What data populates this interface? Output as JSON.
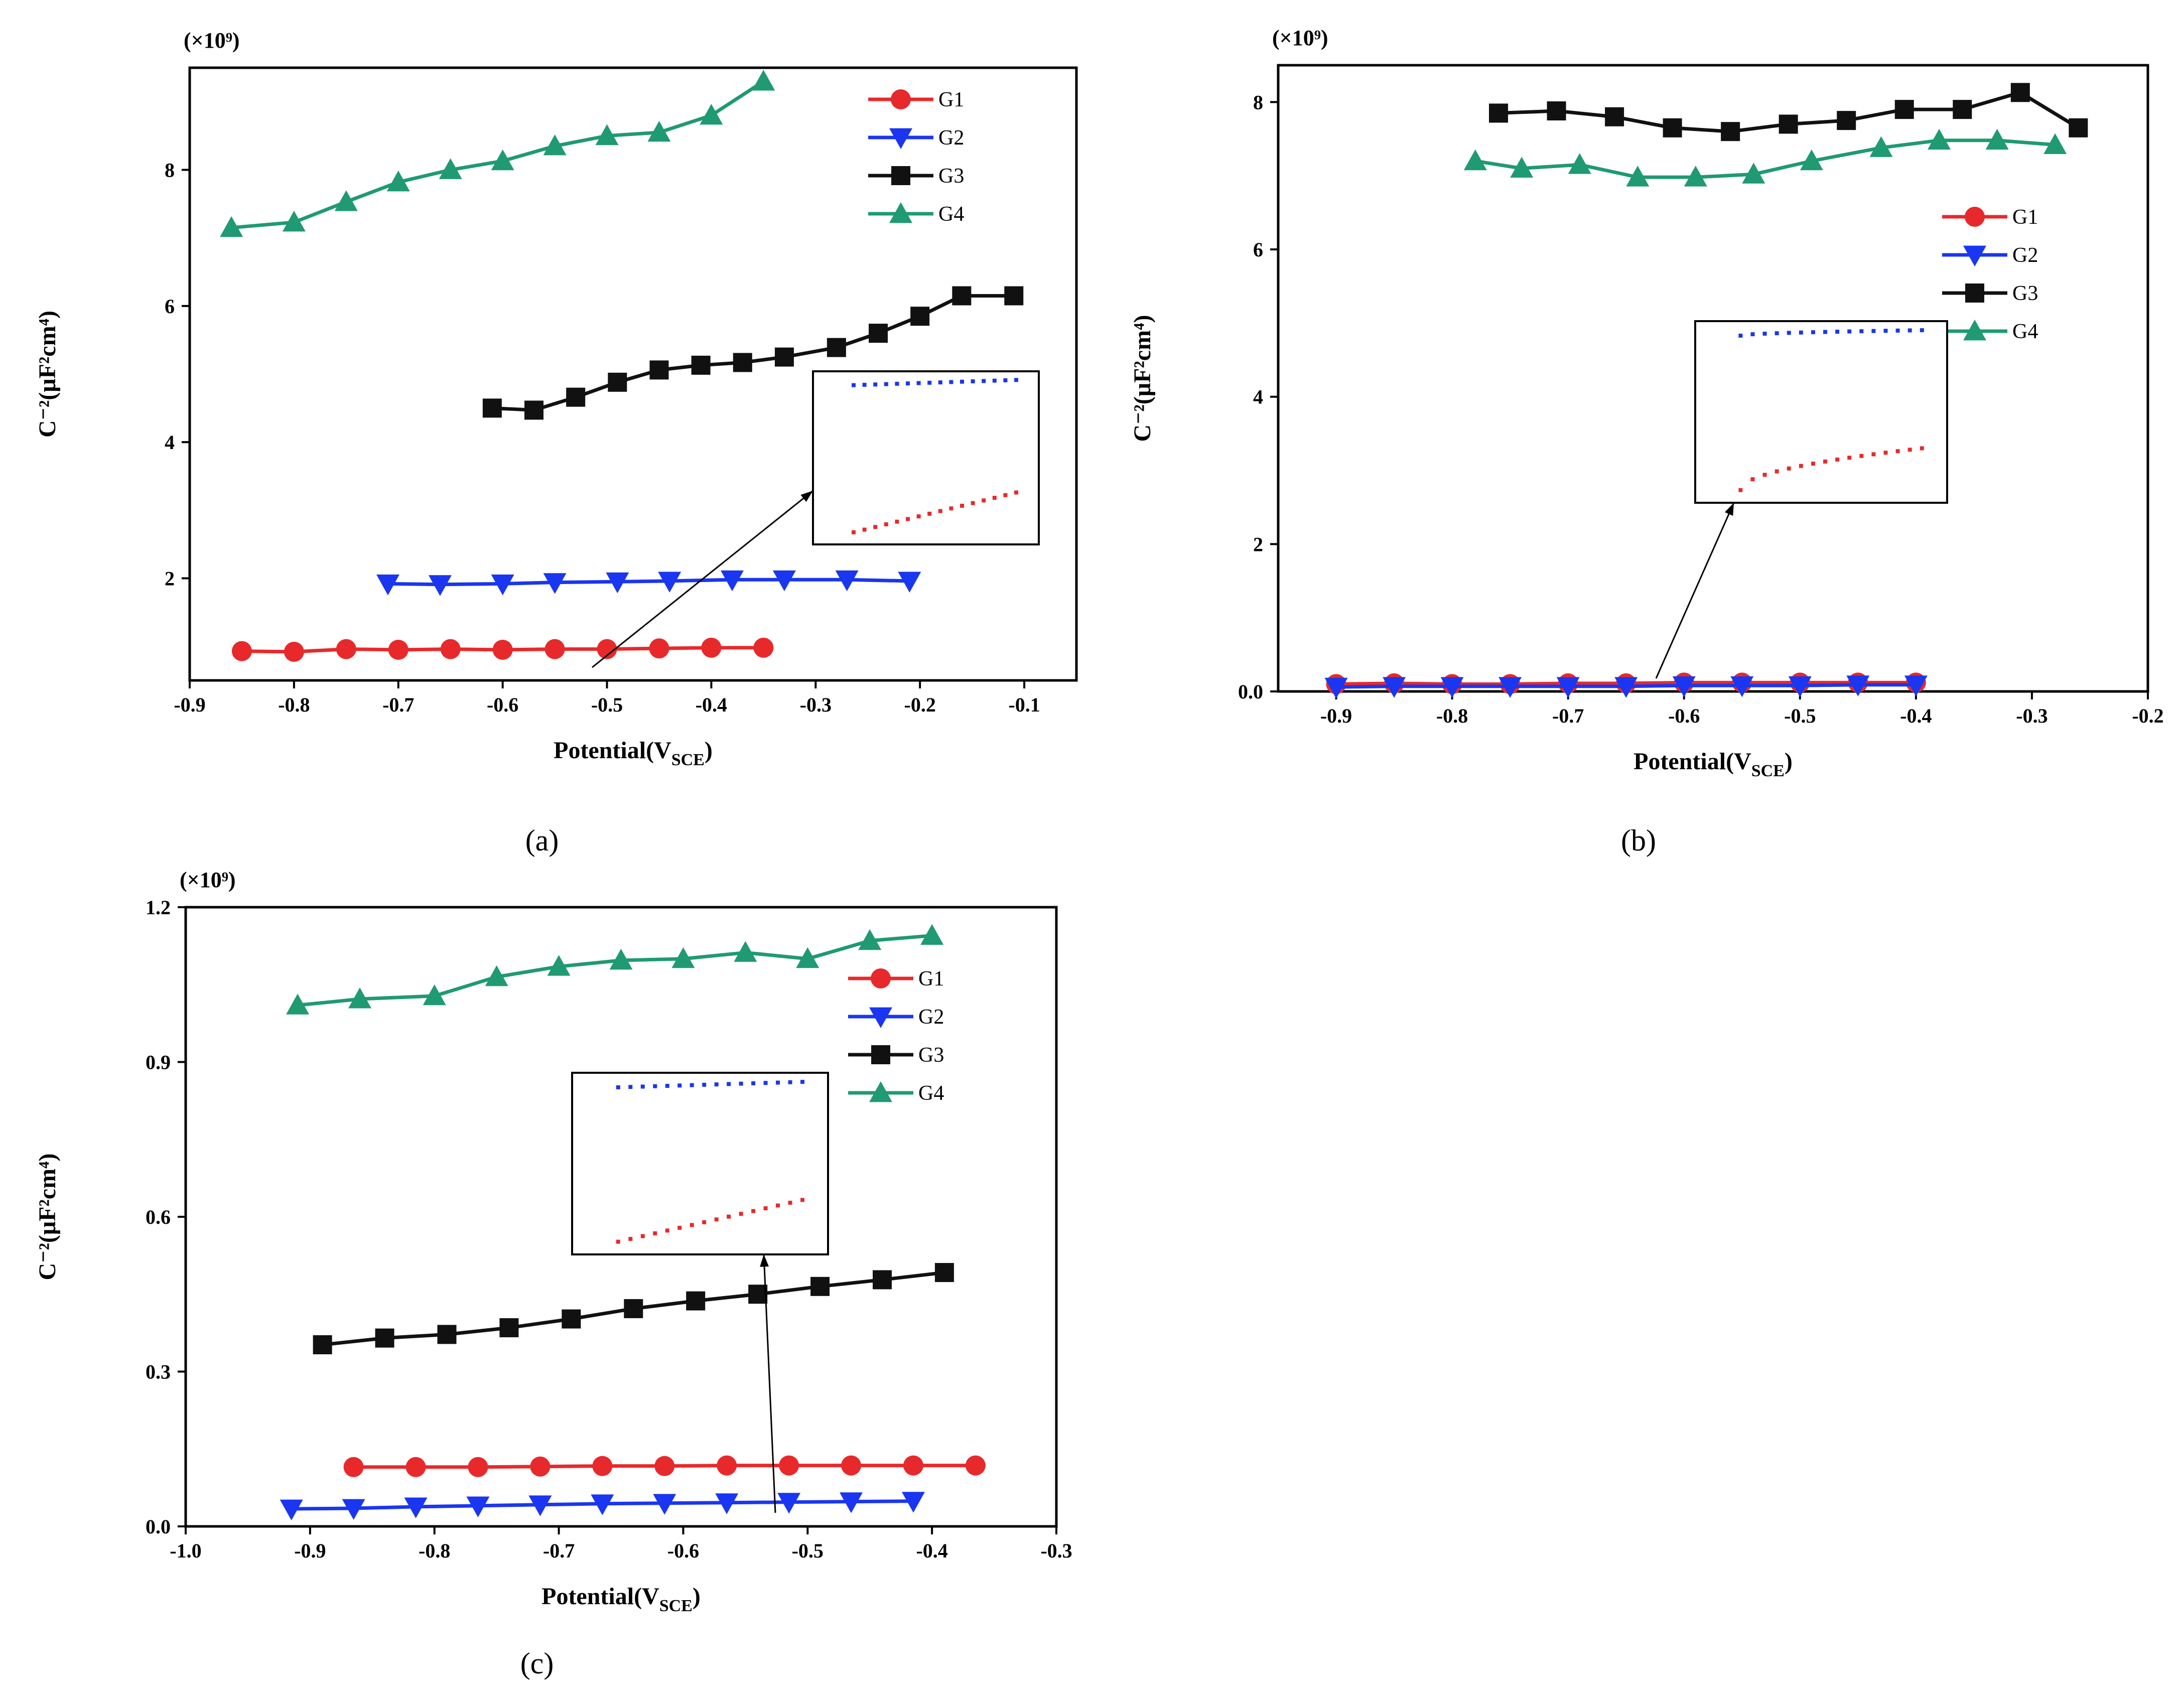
{
  "chart_data": [
    {
      "type": "line",
      "panel_label": "(a)",
      "multiplier": "(×10⁹)",
      "xlabel": "Potential(V",
      "xlabel_sub": "SCE",
      "ylabel": "C⁻²(μF²cm⁴)",
      "xlim": [
        -0.9,
        -0.05
      ],
      "ylim": [
        0.5,
        9.5
      ],
      "xticks": [
        -0.9,
        -0.8,
        -0.7,
        -0.6,
        -0.5,
        -0.4,
        -0.3,
        -0.2,
        -0.1
      ],
      "xtick_labels": [
        "-0.9",
        "-0.8",
        "-0.7",
        "-0.6",
        "-0.5",
        "-0.4",
        "-0.3",
        "-0.2",
        "-0.1"
      ],
      "yticks": [
        2,
        4,
        6,
        8
      ],
      "ytick_labels": [
        "2",
        "4",
        "6",
        "8"
      ],
      "legend_position": "top-right",
      "series": [
        {
          "name": "G1",
          "color": "#e8292b",
          "marker": "circle",
          "x": [
            -0.85,
            -0.8,
            -0.75,
            -0.7,
            -0.65,
            -0.6,
            -0.55,
            -0.5,
            -0.45,
            -0.4,
            -0.35
          ],
          "y": [
            0.93,
            0.92,
            0.96,
            0.95,
            0.96,
            0.95,
            0.96,
            0.96,
            0.97,
            0.98,
            0.98
          ]
        },
        {
          "name": "G2",
          "color": "#1a36f0",
          "marker": "triangle-down",
          "x": [
            -0.71,
            -0.66,
            -0.6,
            -0.55,
            -0.49,
            -0.44,
            -0.38,
            -0.33,
            -0.27,
            -0.21
          ],
          "y": [
            1.92,
            1.91,
            1.92,
            1.94,
            1.95,
            1.96,
            1.98,
            1.98,
            1.98,
            1.96
          ]
        },
        {
          "name": "G3",
          "color": "#111111",
          "marker": "square",
          "x": [
            -0.61,
            -0.57,
            -0.53,
            -0.49,
            -0.45,
            -0.41,
            -0.37,
            -0.33,
            -0.28,
            -0.24,
            -0.2,
            -0.16,
            -0.11
          ],
          "y": [
            4.5,
            4.47,
            4.66,
            4.88,
            5.06,
            5.13,
            5.17,
            5.25,
            5.39,
            5.6,
            5.85,
            6.15,
            6.15
          ]
        },
        {
          "name": "G4",
          "color": "#1f9a72",
          "marker": "triangle-up",
          "x": [
            -0.86,
            -0.8,
            -0.75,
            -0.7,
            -0.65,
            -0.6,
            -0.55,
            -0.5,
            -0.45,
            -0.4,
            -0.35
          ],
          "y": [
            7.15,
            7.23,
            7.53,
            7.82,
            8.0,
            8.13,
            8.35,
            8.5,
            8.55,
            8.8,
            9.3
          ]
        }
      ]
    },
    {
      "type": "line",
      "panel_label": "(b)",
      "multiplier": "(×10⁹)",
      "xlabel": "Potential(V",
      "xlabel_sub": "SCE",
      "ylabel": "C⁻²(μF²cm⁴)",
      "xlim": [
        -0.95,
        -0.2
      ],
      "ylim": [
        0,
        8.5
      ],
      "xticks": [
        -0.9,
        -0.8,
        -0.7,
        -0.6,
        -0.5,
        -0.4,
        -0.3,
        -0.2
      ],
      "xtick_labels": [
        "-0.9",
        "-0.8",
        "-0.7",
        "-0.6",
        "-0.5",
        "-0.4",
        "-0.3",
        "-0.2"
      ],
      "yticks": [
        0,
        2,
        4,
        6,
        8
      ],
      "ytick_labels": [
        "0.0",
        "2",
        "4",
        "6",
        "8"
      ],
      "legend_position": "right",
      "series": [
        {
          "name": "G1",
          "color": "#e8292b",
          "marker": "circle",
          "x": [
            -0.9,
            -0.85,
            -0.8,
            -0.75,
            -0.7,
            -0.65,
            -0.6,
            -0.55,
            -0.5,
            -0.45,
            -0.4
          ],
          "y": [
            0.1,
            0.11,
            0.1,
            0.1,
            0.11,
            0.11,
            0.12,
            0.12,
            0.12,
            0.12,
            0.12
          ]
        },
        {
          "name": "G2",
          "color": "#1a36f0",
          "marker": "triangle-down",
          "x": [
            -0.9,
            -0.85,
            -0.8,
            -0.75,
            -0.7,
            -0.65,
            -0.6,
            -0.55,
            -0.5,
            -0.45,
            -0.4
          ],
          "y": [
            0.06,
            0.07,
            0.07,
            0.07,
            0.07,
            0.07,
            0.08,
            0.08,
            0.08,
            0.09,
            0.09
          ]
        },
        {
          "name": "G3",
          "color": "#111111",
          "marker": "square",
          "x": [
            -0.76,
            -0.71,
            -0.66,
            -0.61,
            -0.56,
            -0.51,
            -0.46,
            -0.41,
            -0.36,
            -0.31,
            -0.26
          ],
          "y": [
            7.85,
            7.88,
            7.8,
            7.65,
            7.6,
            7.7,
            7.75,
            7.9,
            7.9,
            8.13,
            7.65
          ]
        },
        {
          "name": "G4",
          "color": "#1f9a72",
          "marker": "triangle-up",
          "x": [
            -0.78,
            -0.74,
            -0.69,
            -0.64,
            -0.59,
            -0.54,
            -0.49,
            -0.43,
            -0.38,
            -0.33,
            -0.28
          ],
          "y": [
            7.2,
            7.1,
            7.15,
            6.98,
            6.98,
            7.02,
            7.2,
            7.38,
            7.48,
            7.48,
            7.42
          ]
        }
      ]
    },
    {
      "type": "line",
      "panel_label": "(c)",
      "multiplier": "(×10⁹)",
      "xlabel": "Potential(V",
      "xlabel_sub": "SCE",
      "ylabel": "C⁻²(μF²cm⁴)",
      "xlim": [
        -1.0,
        -0.3
      ],
      "ylim": [
        0,
        1.2
      ],
      "xticks": [
        -1.0,
        -0.9,
        -0.8,
        -0.7,
        -0.6,
        -0.5,
        -0.4,
        -0.3
      ],
      "xtick_labels": [
        "-1.0",
        "-0.9",
        "-0.8",
        "-0.7",
        "-0.6",
        "-0.5",
        "-0.4",
        "-0.3"
      ],
      "yticks": [
        0,
        0.3,
        0.6,
        0.9,
        1.2
      ],
      "ytick_labels": [
        "0.0",
        "0.3",
        "0.6",
        "0.9",
        "1.2"
      ],
      "legend_position": "top-right",
      "series": [
        {
          "name": "G1",
          "color": "#e8292b",
          "marker": "circle",
          "x": [
            -0.865,
            -0.815,
            -0.765,
            -0.715,
            -0.665,
            -0.615,
            -0.565,
            -0.515,
            -0.465,
            -0.415,
            -0.365
          ],
          "y": [
            0.115,
            0.115,
            0.115,
            0.116,
            0.117,
            0.117,
            0.118,
            0.118,
            0.118,
            0.118,
            0.118
          ]
        },
        {
          "name": "G2",
          "color": "#1a36f0",
          "marker": "triangle-down",
          "x": [
            -0.915,
            -0.865,
            -0.815,
            -0.765,
            -0.715,
            -0.665,
            -0.615,
            -0.565,
            -0.515,
            -0.465,
            -0.415
          ],
          "y": [
            0.034,
            0.035,
            0.038,
            0.04,
            0.042,
            0.044,
            0.045,
            0.046,
            0.047,
            0.048,
            0.049
          ]
        },
        {
          "name": "G3",
          "color": "#111111",
          "marker": "square",
          "x": [
            -0.89,
            -0.84,
            -0.79,
            -0.74,
            -0.69,
            -0.64,
            -0.59,
            -0.54,
            -0.49,
            -0.44,
            -0.39
          ],
          "y": [
            0.352,
            0.365,
            0.372,
            0.385,
            0.402,
            0.422,
            0.437,
            0.45,
            0.465,
            0.478,
            0.492
          ]
        },
        {
          "name": "G4",
          "color": "#1f9a72",
          "marker": "triangle-up",
          "x": [
            -0.91,
            -0.86,
            -0.8,
            -0.75,
            -0.7,
            -0.65,
            -0.6,
            -0.55,
            -0.5,
            -0.45,
            -0.4
          ],
          "y": [
            1.01,
            1.022,
            1.028,
            1.065,
            1.085,
            1.097,
            1.1,
            1.112,
            1.1,
            1.135,
            1.145
          ]
        }
      ]
    }
  ]
}
